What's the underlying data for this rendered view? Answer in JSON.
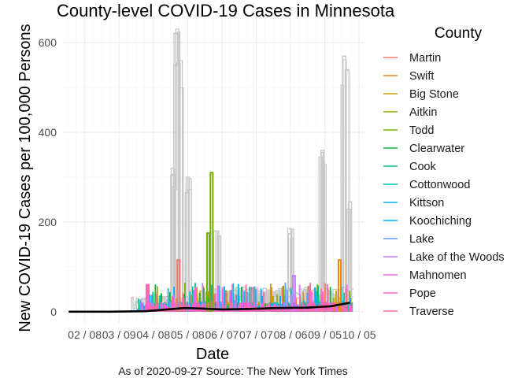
{
  "chart_data": {
    "type": "line",
    "title": "County-level COVID-19 Cases in Minnesota",
    "xlabel": "Date",
    "ylabel": "New COVID-19 Cases per 100,000 Persons",
    "caption": "As of 2020-09-27 Source: The New York Times",
    "x_ticks": [
      "02 / 08",
      "03 / 09",
      "04 / 08",
      "05 / 08",
      "06 / 07",
      "07 / 07",
      "08 / 06",
      "09 / 05",
      "10 / 05"
    ],
    "y_ticks": [
      "0",
      "200",
      "400",
      "600"
    ],
    "xlim": [
      "2020-01-20",
      "2020-10-09"
    ],
    "ylim": [
      -25,
      660
    ],
    "grid": true,
    "legend": {
      "title": "County",
      "position": "right",
      "items": [
        {
          "name": "Martin",
          "color": "#F8766D"
        },
        {
          "name": "Swift",
          "color": "#E7861B"
        },
        {
          "name": "Big Stone",
          "color": "#C79E00"
        },
        {
          "name": "Aitkin",
          "color": "#A3A500"
        },
        {
          "name": "Todd",
          "color": "#72B000"
        },
        {
          "name": "Clearwater",
          "color": "#00BA38"
        },
        {
          "name": "Cook",
          "color": "#00C08B"
        },
        {
          "name": "Cottonwood",
          "color": "#00BFC4"
        },
        {
          "name": "Kittson",
          "color": "#00B4F0"
        },
        {
          "name": "Koochiching",
          "color": "#00A9FF"
        },
        {
          "name": "Lake",
          "color": "#619CFF"
        },
        {
          "name": "Lake of the Woods",
          "color": "#C77CFF"
        },
        {
          "name": "Mahnomen",
          "color": "#F564E3"
        },
        {
          "name": "Pope",
          "color": "#FF61C3"
        },
        {
          "name": "Traverse",
          "color": "#FF6A98"
        }
      ]
    },
    "background_series_color": "#c8c8c8",
    "trend_color": "#000000",
    "background_peaks": [
      {
        "x": "2020-04-25",
        "y": 320
      },
      {
        "x": "2020-04-29",
        "y": 630
      },
      {
        "x": "2020-05-02",
        "y": 560
      },
      {
        "x": "2020-05-08",
        "y": 300
      },
      {
        "x": "2020-06-03",
        "y": 180
      },
      {
        "x": "2020-08-05",
        "y": 185
      },
      {
        "x": "2020-09-03",
        "y": 360
      },
      {
        "x": "2020-09-22",
        "y": 570
      },
      {
        "x": "2020-09-27",
        "y": 245
      }
    ],
    "highlight_peaks": [
      {
        "series": "Todd",
        "x": "2020-05-29",
        "y": 310
      },
      {
        "series": "Todd",
        "x": "2020-05-26",
        "y": 175
      },
      {
        "series": "Martin",
        "x": "2020-04-30",
        "y": 115
      },
      {
        "series": "Swift",
        "x": "2020-09-18",
        "y": 115
      },
      {
        "series": "Lake of the Woods",
        "x": "2020-08-09",
        "y": 80
      },
      {
        "series": "Pope",
        "x": "2020-04-03",
        "y": 60
      }
    ],
    "trend": [
      {
        "x": "2020-01-25",
        "y": 0
      },
      {
        "x": "2020-03-01",
        "y": 0
      },
      {
        "x": "2020-04-01",
        "y": 1
      },
      {
        "x": "2020-04-20",
        "y": 5
      },
      {
        "x": "2020-05-05",
        "y": 8
      },
      {
        "x": "2020-05-20",
        "y": 7
      },
      {
        "x": "2020-06-07",
        "y": 5
      },
      {
        "x": "2020-07-01",
        "y": 6
      },
      {
        "x": "2020-07-25",
        "y": 8
      },
      {
        "x": "2020-08-20",
        "y": 9
      },
      {
        "x": "2020-09-10",
        "y": 12
      },
      {
        "x": "2020-09-27",
        "y": 20
      }
    ]
  }
}
